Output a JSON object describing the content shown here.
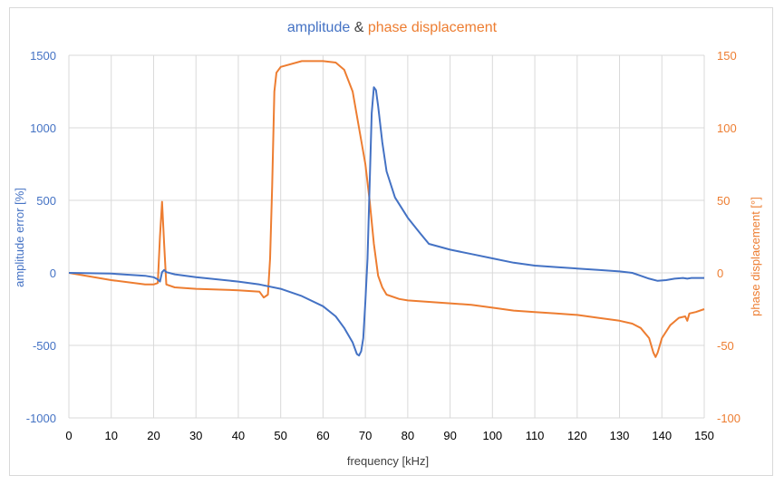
{
  "chart_data": {
    "type": "line",
    "title_parts": [
      "amplitude",
      " & ",
      "phase displacement"
    ],
    "xlabel": "frequency [kHz]",
    "ylabel_left": "amplitude error [%]",
    "ylabel_right": "phase displacement [°]",
    "xlim": [
      0,
      150
    ],
    "ylim_left": [
      -1000,
      1500
    ],
    "ylim_right": [
      -100,
      150
    ],
    "x_ticks": [
      "0",
      "10",
      "20",
      "30",
      "40",
      "50",
      "60",
      "70",
      "80",
      "90",
      "100",
      "110",
      "120",
      "130",
      "140",
      "150"
    ],
    "y_ticks_left": [
      "-1000",
      "-500",
      "0",
      "500",
      "1000",
      "1500"
    ],
    "y_ticks_right": [
      "-100",
      "-50",
      "0",
      "50",
      "100",
      "150"
    ],
    "grid": true,
    "colors": {
      "amplitude": "#4472c4",
      "phase": "#ed7d31",
      "title_mid": "#404040",
      "tick": "#595959"
    },
    "series": [
      {
        "axis": "left",
        "color": "#4472c4",
        "points": [
          [
            0,
            0
          ],
          [
            10,
            -5
          ],
          [
            18,
            -20
          ],
          [
            20,
            -30
          ],
          [
            21,
            -45
          ],
          [
            21.5,
            -60
          ],
          [
            22,
            5
          ],
          [
            22.5,
            20
          ],
          [
            23,
            5
          ],
          [
            25,
            -10
          ],
          [
            30,
            -30
          ],
          [
            40,
            -60
          ],
          [
            45,
            -80
          ],
          [
            50,
            -110
          ],
          [
            55,
            -160
          ],
          [
            60,
            -230
          ],
          [
            63,
            -300
          ],
          [
            65,
            -380
          ],
          [
            67,
            -480
          ],
          [
            68,
            -560
          ],
          [
            68.5,
            -570
          ],
          [
            69,
            -540
          ],
          [
            69.5,
            -450
          ],
          [
            70,
            -200
          ],
          [
            70.5,
            100
          ],
          [
            71,
            600
          ],
          [
            71.5,
            1100
          ],
          [
            72,
            1280
          ],
          [
            72.5,
            1260
          ],
          [
            73,
            1150
          ],
          [
            74,
            900
          ],
          [
            75,
            700
          ],
          [
            77,
            520
          ],
          [
            80,
            380
          ],
          [
            83,
            270
          ],
          [
            85,
            200
          ],
          [
            90,
            160
          ],
          [
            95,
            130
          ],
          [
            100,
            100
          ],
          [
            105,
            70
          ],
          [
            110,
            50
          ],
          [
            115,
            40
          ],
          [
            120,
            30
          ],
          [
            125,
            20
          ],
          [
            130,
            10
          ],
          [
            133,
            0
          ],
          [
            135,
            -20
          ],
          [
            137,
            -40
          ],
          [
            139,
            -55
          ],
          [
            141,
            -50
          ],
          [
            143,
            -40
          ],
          [
            145,
            -35
          ],
          [
            146,
            -40
          ],
          [
            147,
            -35
          ],
          [
            150,
            -35
          ]
        ]
      },
      {
        "axis": "right",
        "color": "#ed7d31",
        "points": [
          [
            0,
            0
          ],
          [
            10,
            -5
          ],
          [
            18,
            -8
          ],
          [
            20,
            -8
          ],
          [
            21,
            -7
          ],
          [
            21.5,
            25
          ],
          [
            22,
            49
          ],
          [
            22.5,
            20
          ],
          [
            23,
            -8
          ],
          [
            25,
            -10
          ],
          [
            30,
            -11
          ],
          [
            40,
            -12
          ],
          [
            45,
            -13
          ],
          [
            46,
            -17
          ],
          [
            47,
            -15
          ],
          [
            47.5,
            10
          ],
          [
            48,
            60
          ],
          [
            48.5,
            125
          ],
          [
            49,
            138
          ],
          [
            50,
            142
          ],
          [
            55,
            146
          ],
          [
            60,
            146
          ],
          [
            63,
            145
          ],
          [
            65,
            140
          ],
          [
            67,
            125
          ],
          [
            68.5,
            100
          ],
          [
            70,
            75
          ],
          [
            71,
            50
          ],
          [
            72,
            20
          ],
          [
            73,
            -2
          ],
          [
            74,
            -10
          ],
          [
            75,
            -15
          ],
          [
            78,
            -18
          ],
          [
            80,
            -19
          ],
          [
            85,
            -20
          ],
          [
            90,
            -21
          ],
          [
            95,
            -22
          ],
          [
            100,
            -24
          ],
          [
            105,
            -26
          ],
          [
            110,
            -27
          ],
          [
            115,
            -28
          ],
          [
            120,
            -29
          ],
          [
            125,
            -31
          ],
          [
            130,
            -33
          ],
          [
            133,
            -35
          ],
          [
            135,
            -38
          ],
          [
            137,
            -45
          ],
          [
            138,
            -55
          ],
          [
            138.5,
            -58
          ],
          [
            139,
            -55
          ],
          [
            140,
            -45
          ],
          [
            142,
            -36
          ],
          [
            144,
            -31
          ],
          [
            145.5,
            -30
          ],
          [
            146,
            -33
          ],
          [
            146.5,
            -28
          ],
          [
            148,
            -27
          ],
          [
            150,
            -25
          ]
        ]
      }
    ]
  }
}
